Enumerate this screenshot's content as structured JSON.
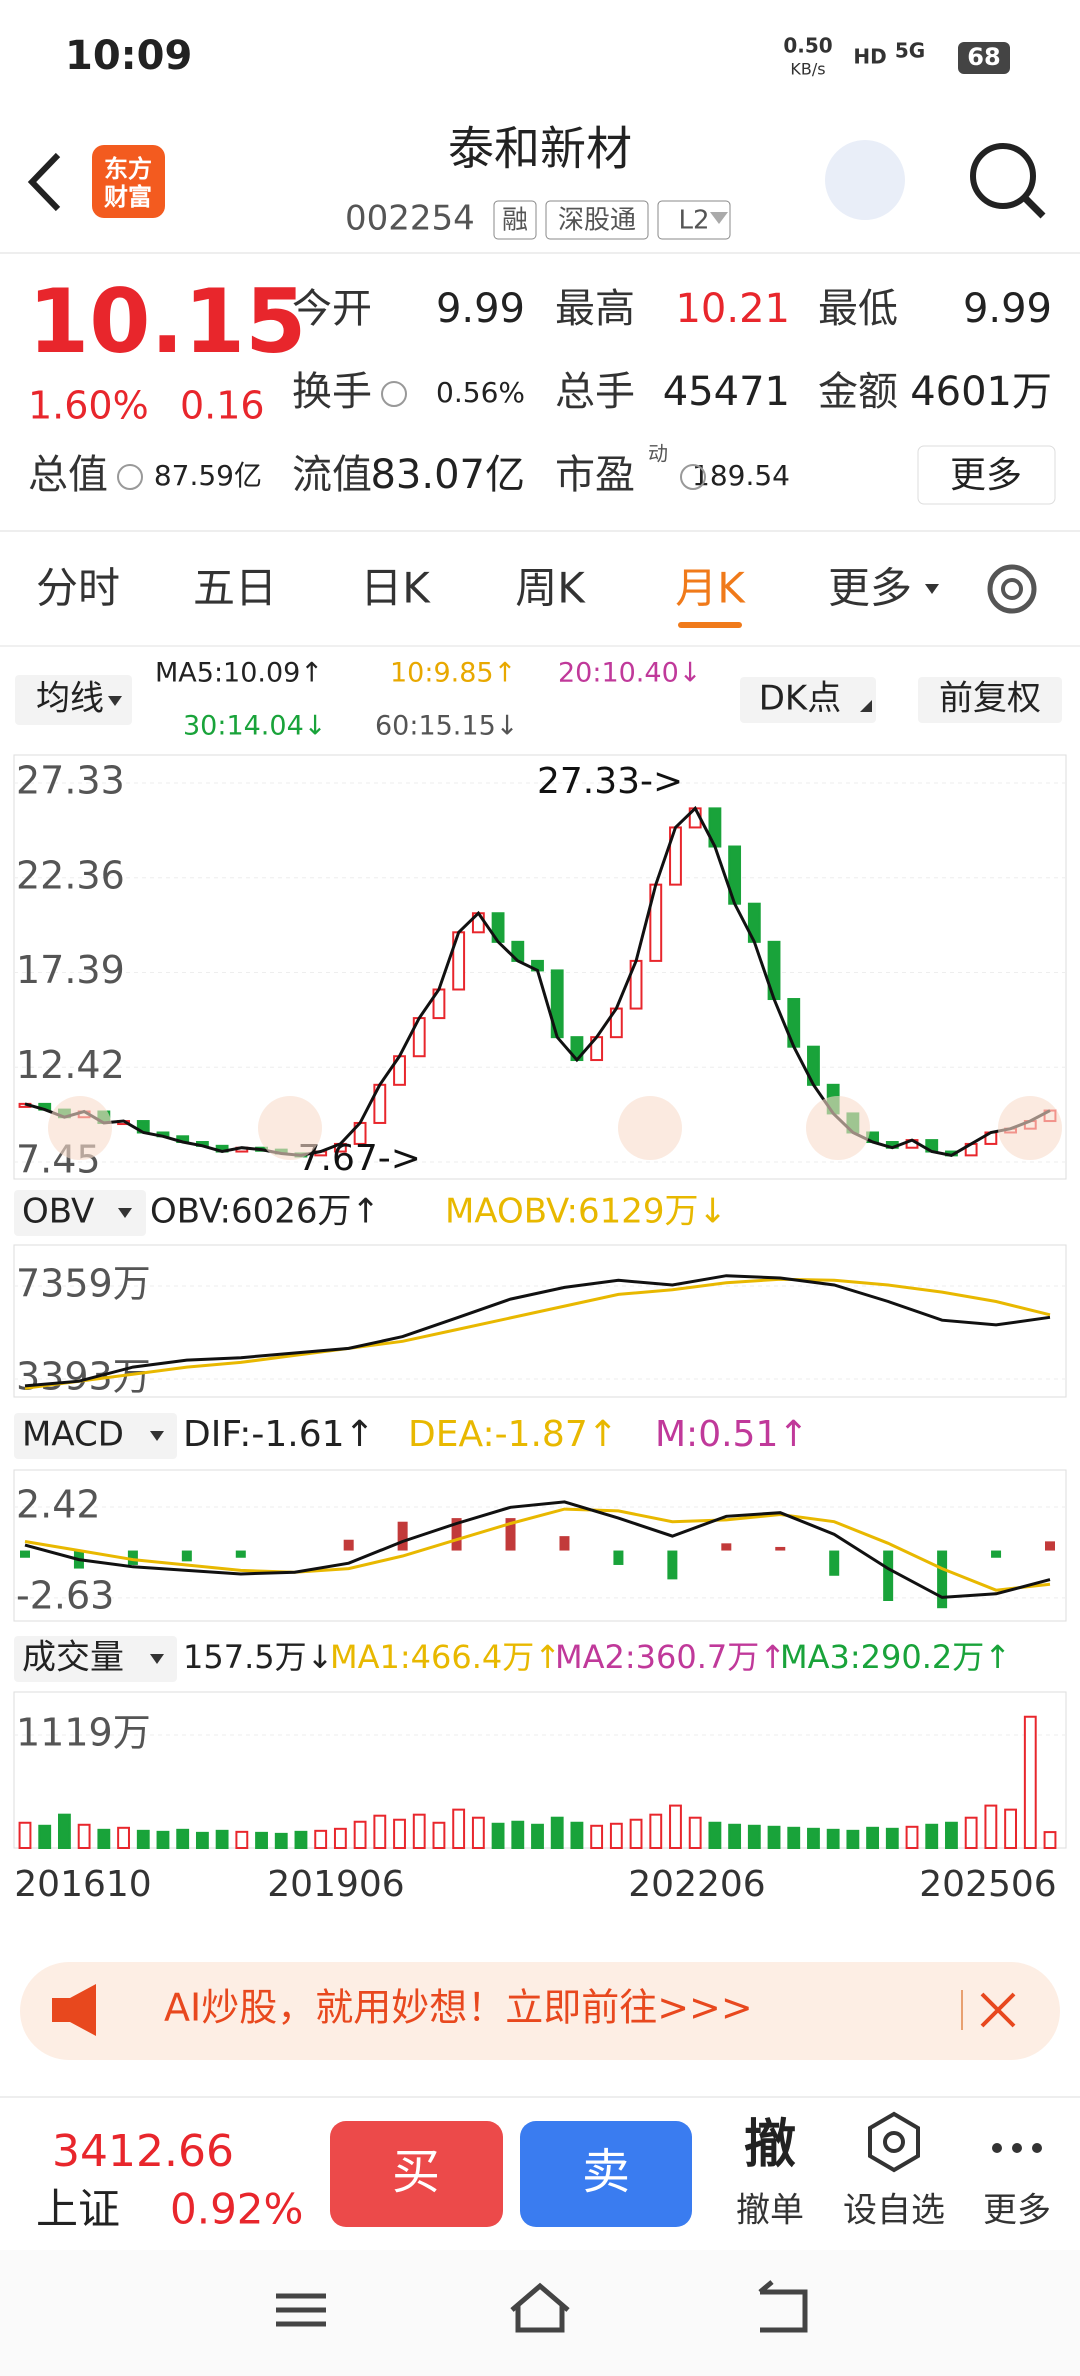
{
  "status": {
    "time": "10:09",
    "speed": "0.50",
    "speed_unit": "KB/s",
    "hd": "HD",
    "net": "5G",
    "battery": "68"
  },
  "header": {
    "logo_top": "东方",
    "logo_bottom": "财富",
    "title": "泰和新材",
    "code": "002254",
    "tags": [
      "融",
      "深股通",
      "L2"
    ]
  },
  "quote": {
    "price": "10.15",
    "change_pct": "1.60%",
    "change": "0.16",
    "fields": [
      {
        "label": "今开",
        "value": "9.99"
      },
      {
        "label": "最高",
        "value": "10.21"
      },
      {
        "label": "最低",
        "value": "9.99"
      },
      {
        "label": "换手",
        "value": "0.56%"
      },
      {
        "label": "总手",
        "value": "45471"
      },
      {
        "label": "金额",
        "value": "4601万"
      },
      {
        "label": "总值",
        "value": "87.59亿"
      },
      {
        "label": "流值",
        "value": "83.07亿"
      },
      {
        "label": "市盈",
        "value": "189.54"
      }
    ],
    "pe_sup": "动",
    "more": "更多"
  },
  "tabs": {
    "items": [
      "分时",
      "五日",
      "日K",
      "周K",
      "月K",
      "更多"
    ],
    "active": 4
  },
  "ma": {
    "selector": "均线",
    "items": [
      "MA5:10.09↑",
      "10:9.85↑",
      "20:10.40↓",
      "30:14.04↓",
      "60:15.15↓"
    ],
    "dk": "DK点",
    "adjust": "前复权"
  },
  "price_chart": {
    "ylim": [
      6.56,
      28.8
    ],
    "yticks": [
      27.33,
      22.36,
      17.39,
      12.42,
      7.45
    ],
    "max_label": "27.33->",
    "min_label": "7.67->",
    "close": [
      10.5,
      10.2,
      9.8,
      10.1,
      9.5,
      9.6,
      9.0,
      8.8,
      8.5,
      8.3,
      8.0,
      8.2,
      8.1,
      7.9,
      7.8,
      8.0,
      8.4,
      9.5,
      11.5,
      13,
      15,
      16.5,
      19.5,
      20.5,
      19,
      18,
      17.5,
      14,
      12.8,
      14,
      15.5,
      18,
      22,
      25,
      26,
      24,
      21,
      19,
      16,
      13.5,
      11.5,
      10,
      9,
      8.5,
      8.2,
      8.6,
      8.0,
      7.8,
      8.4,
      9.0,
      9.2,
      9.6,
      10.15
    ]
  },
  "obv": {
    "selector": "OBV",
    "obv_label": "OBV:6026万↑",
    "maobv_label": "MAOBV:6129万↓",
    "ylim": [
      2626,
      9107
    ],
    "yticks": [
      {
        "value": 7359,
        "label": "7359万"
      },
      {
        "value": 3393,
        "label": "3393万"
      }
    ],
    "obv": [
      3100,
      3300,
      3900,
      4200,
      4300,
      4500,
      4700,
      5200,
      6000,
      6800,
      7300,
      7600,
      7400,
      7800,
      7700,
      7400,
      6700,
      5900,
      5700,
      6026
    ],
    "maobv": [
      3000,
      3300,
      3600,
      3900,
      4100,
      4400,
      4700,
      5000,
      5500,
      6000,
      6500,
      7000,
      7200,
      7500,
      7650,
      7600,
      7400,
      7100,
      6700,
      6129
    ]
  },
  "macd": {
    "selector": "MACD",
    "dif_label": "DIF:-1.61↑",
    "dea_label": "DEA:-1.87↑",
    "m_label": "M:0.51↑",
    "ylim": [
      -3.91,
      4.47
    ],
    "yticks": [
      2.42,
      -2.63
    ],
    "dif": [
      0.3,
      -0.5,
      -0.9,
      -1.1,
      -1.3,
      -1.2,
      -0.7,
      0.5,
      1.5,
      2.4,
      2.7,
      1.8,
      0.8,
      1.9,
      2.1,
      0.9,
      -1.0,
      -2.6,
      -2.4,
      -1.61
    ],
    "dea": [
      0.5,
      0,
      -0.5,
      -0.8,
      -1.1,
      -1.2,
      -1.0,
      -0.3,
      0.6,
      1.5,
      2.3,
      2.2,
      1.6,
      1.7,
      2.0,
      1.6,
      0.4,
      -1.0,
      -2.2,
      -1.87
    ],
    "m": [
      -0.4,
      -1,
      -0.8,
      -0.6,
      -0.4,
      0,
      0.6,
      1.6,
      1.8,
      1.8,
      0.8,
      -0.8,
      -1.6,
      0.4,
      0.2,
      -1.4,
      -2.8,
      -3.2,
      -0.4,
      0.51
    ]
  },
  "volume": {
    "selector": "成交量",
    "last_label": "157.5万↓",
    "ma1_label": "MA1:466.4万↑",
    "ma2_label": "MA2:360.7万↑",
    "ma3_label": "MA3:290.2万↑",
    "ylim": [
      0,
      1545
    ],
    "yticks": [
      {
        "value": 1119,
        "label": "1119万"
      }
    ],
    "values": [
      250,
      220,
      330,
      230,
      180,
      200,
      170,
      160,
      180,
      150,
      170,
      160,
      150,
      140,
      160,
      170,
      190,
      260,
      320,
      280,
      330,
      250,
      380,
      300,
      240,
      260,
      230,
      300,
      250,
      220,
      240,
      280,
      330,
      420,
      300,
      250,
      230,
      220,
      210,
      200,
      190,
      180,
      170,
      200,
      190,
      210,
      230,
      250,
      300,
      420,
      380,
      1300,
      157.5
    ]
  },
  "x_labels": [
    "201610",
    "201906",
    "202206",
    "202506"
  ],
  "banner": {
    "text": "AI炒股，就用妙想！立即前往>>>"
  },
  "bottom": {
    "index_value": "3412.66",
    "index_name": "上证",
    "index_pct": "0.92%",
    "buy": "买",
    "sell": "卖",
    "cancel_icon": "撤",
    "cancel": "撤单",
    "watch": "设自选",
    "more": "更多"
  }
}
